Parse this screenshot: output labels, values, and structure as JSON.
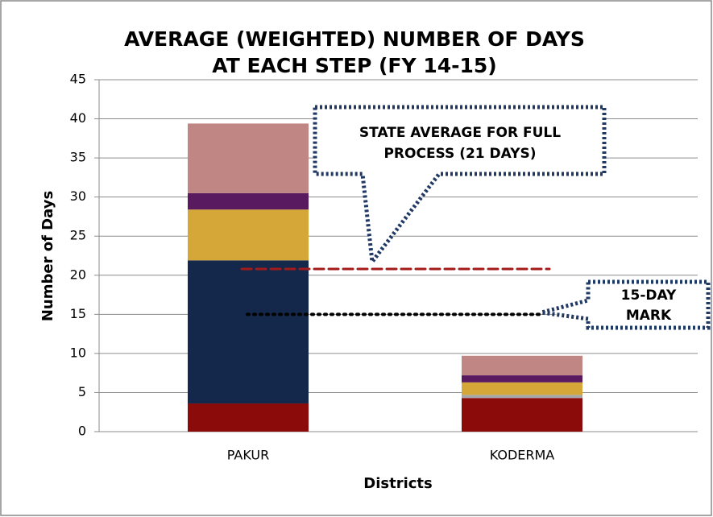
{
  "chart_data": {
    "type": "stacked_bar",
    "title": [
      "AVERAGE (WEIGHTED) NUMBER OF DAYS",
      "AT EACH STEP (FY 14-15)"
    ],
    "x_label": "Districts",
    "y_label": "Number of Days",
    "categories": [
      "PAKUR",
      "KODERMA"
    ],
    "series": [
      {
        "color": "#8b0a0a",
        "values": [
          3.6,
          4.3
        ]
      },
      {
        "color": "#a6a6a6",
        "values": [
          0,
          0.4
        ]
      },
      {
        "color": "#14284b",
        "values": [
          18.3,
          0
        ]
      },
      {
        "color": "#d5a638",
        "values": [
          6.5,
          1.6
        ]
      },
      {
        "color": "#5a1a60",
        "values": [
          2.1,
          0.9
        ]
      },
      {
        "color": "#c08683",
        "values": [
          8.9,
          2.5
        ]
      }
    ],
    "ylim": [
      0,
      45
    ],
    "yticks": [
      0,
      5,
      10,
      15,
      20,
      25,
      30,
      35,
      40,
      45
    ],
    "grid": true,
    "reference_lines": [
      {
        "value": 20.8,
        "color": "#a31a1a"
      },
      {
        "value": 15,
        "color": "#000000"
      }
    ],
    "annotations": [
      [
        "STATE AVERAGE FOR FULL",
        "PROCESS (21 DAYS)"
      ],
      [
        "15-DAY",
        "MARK"
      ]
    ]
  }
}
